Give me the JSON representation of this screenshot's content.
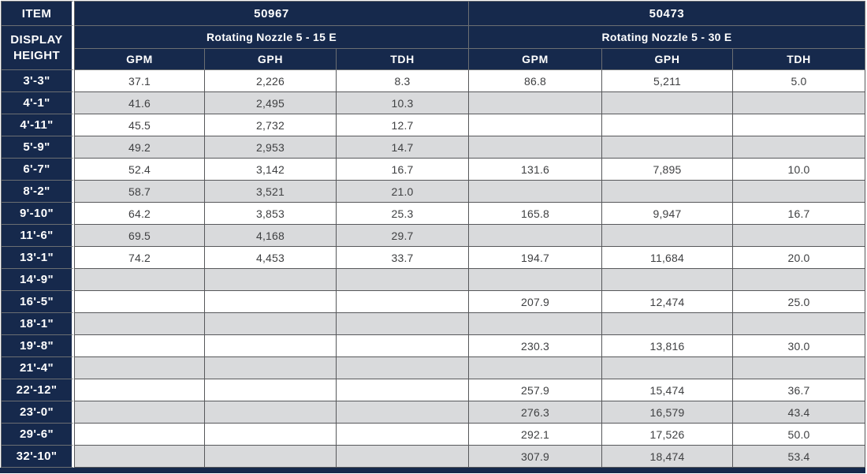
{
  "colors": {
    "navy": "#16294c",
    "stripe_row": "#d9dadc",
    "grid_border": "#57585b",
    "data_text": "#3f4042"
  },
  "table": {
    "item_label": "ITEM",
    "display_height_label": "DISPLAY HEIGHT",
    "items": [
      {
        "number": "50967",
        "nozzle": "Rotating Nozzle 5 - 15 E",
        "columns": [
          "GPM",
          "GPH",
          "TDH"
        ]
      },
      {
        "number": "50473",
        "nozzle": "Rotating Nozzle 5 - 30 E",
        "columns": [
          "GPM",
          "GPH",
          "TDH"
        ]
      }
    ],
    "rows": [
      {
        "height": "3'-3\"",
        "a": [
          "37.1",
          "2,226",
          "8.3"
        ],
        "b": [
          "86.8",
          "5,211",
          "5.0"
        ]
      },
      {
        "height": "4'-1\"",
        "a": [
          "41.6",
          "2,495",
          "10.3"
        ],
        "b": [
          "",
          "",
          ""
        ]
      },
      {
        "height": "4'-11\"",
        "a": [
          "45.5",
          "2,732",
          "12.7"
        ],
        "b": [
          "",
          "",
          ""
        ]
      },
      {
        "height": "5'-9\"",
        "a": [
          "49.2",
          "2,953",
          "14.7"
        ],
        "b": [
          "",
          "",
          ""
        ]
      },
      {
        "height": "6'-7\"",
        "a": [
          "52.4",
          "3,142",
          "16.7"
        ],
        "b": [
          "131.6",
          "7,895",
          "10.0"
        ]
      },
      {
        "height": "8'-2\"",
        "a": [
          "58.7",
          "3,521",
          "21.0"
        ],
        "b": [
          "",
          "",
          ""
        ]
      },
      {
        "height": "9'-10\"",
        "a": [
          "64.2",
          "3,853",
          "25.3"
        ],
        "b": [
          "165.8",
          "9,947",
          "16.7"
        ]
      },
      {
        "height": "11'-6\"",
        "a": [
          "69.5",
          "4,168",
          "29.7"
        ],
        "b": [
          "",
          "",
          ""
        ]
      },
      {
        "height": "13'-1\"",
        "a": [
          "74.2",
          "4,453",
          "33.7"
        ],
        "b": [
          "194.7",
          "11,684",
          "20.0"
        ]
      },
      {
        "height": "14'-9\"",
        "a": [
          "",
          "",
          ""
        ],
        "b": [
          "",
          "",
          ""
        ]
      },
      {
        "height": "16'-5\"",
        "a": [
          "",
          "",
          ""
        ],
        "b": [
          "207.9",
          "12,474",
          "25.0"
        ]
      },
      {
        "height": "18'-1\"",
        "a": [
          "",
          "",
          ""
        ],
        "b": [
          "",
          "",
          ""
        ]
      },
      {
        "height": "19'-8\"",
        "a": [
          "",
          "",
          ""
        ],
        "b": [
          "230.3",
          "13,816",
          "30.0"
        ]
      },
      {
        "height": "21'-4\"",
        "a": [
          "",
          "",
          ""
        ],
        "b": [
          "",
          "",
          ""
        ]
      },
      {
        "height": "22'-12\"",
        "a": [
          "",
          "",
          ""
        ],
        "b": [
          "257.9",
          "15,474",
          "36.7"
        ]
      },
      {
        "height": "23'-0\"",
        "a": [
          "",
          "",
          ""
        ],
        "b": [
          "276.3",
          "16,579",
          "43.4"
        ]
      },
      {
        "height": "29'-6\"",
        "a": [
          "",
          "",
          ""
        ],
        "b": [
          "292.1",
          "17,526",
          "50.0"
        ]
      },
      {
        "height": "32'-10\"",
        "a": [
          "",
          "",
          ""
        ],
        "b": [
          "307.9",
          "18,474",
          "53.4"
        ]
      }
    ]
  }
}
